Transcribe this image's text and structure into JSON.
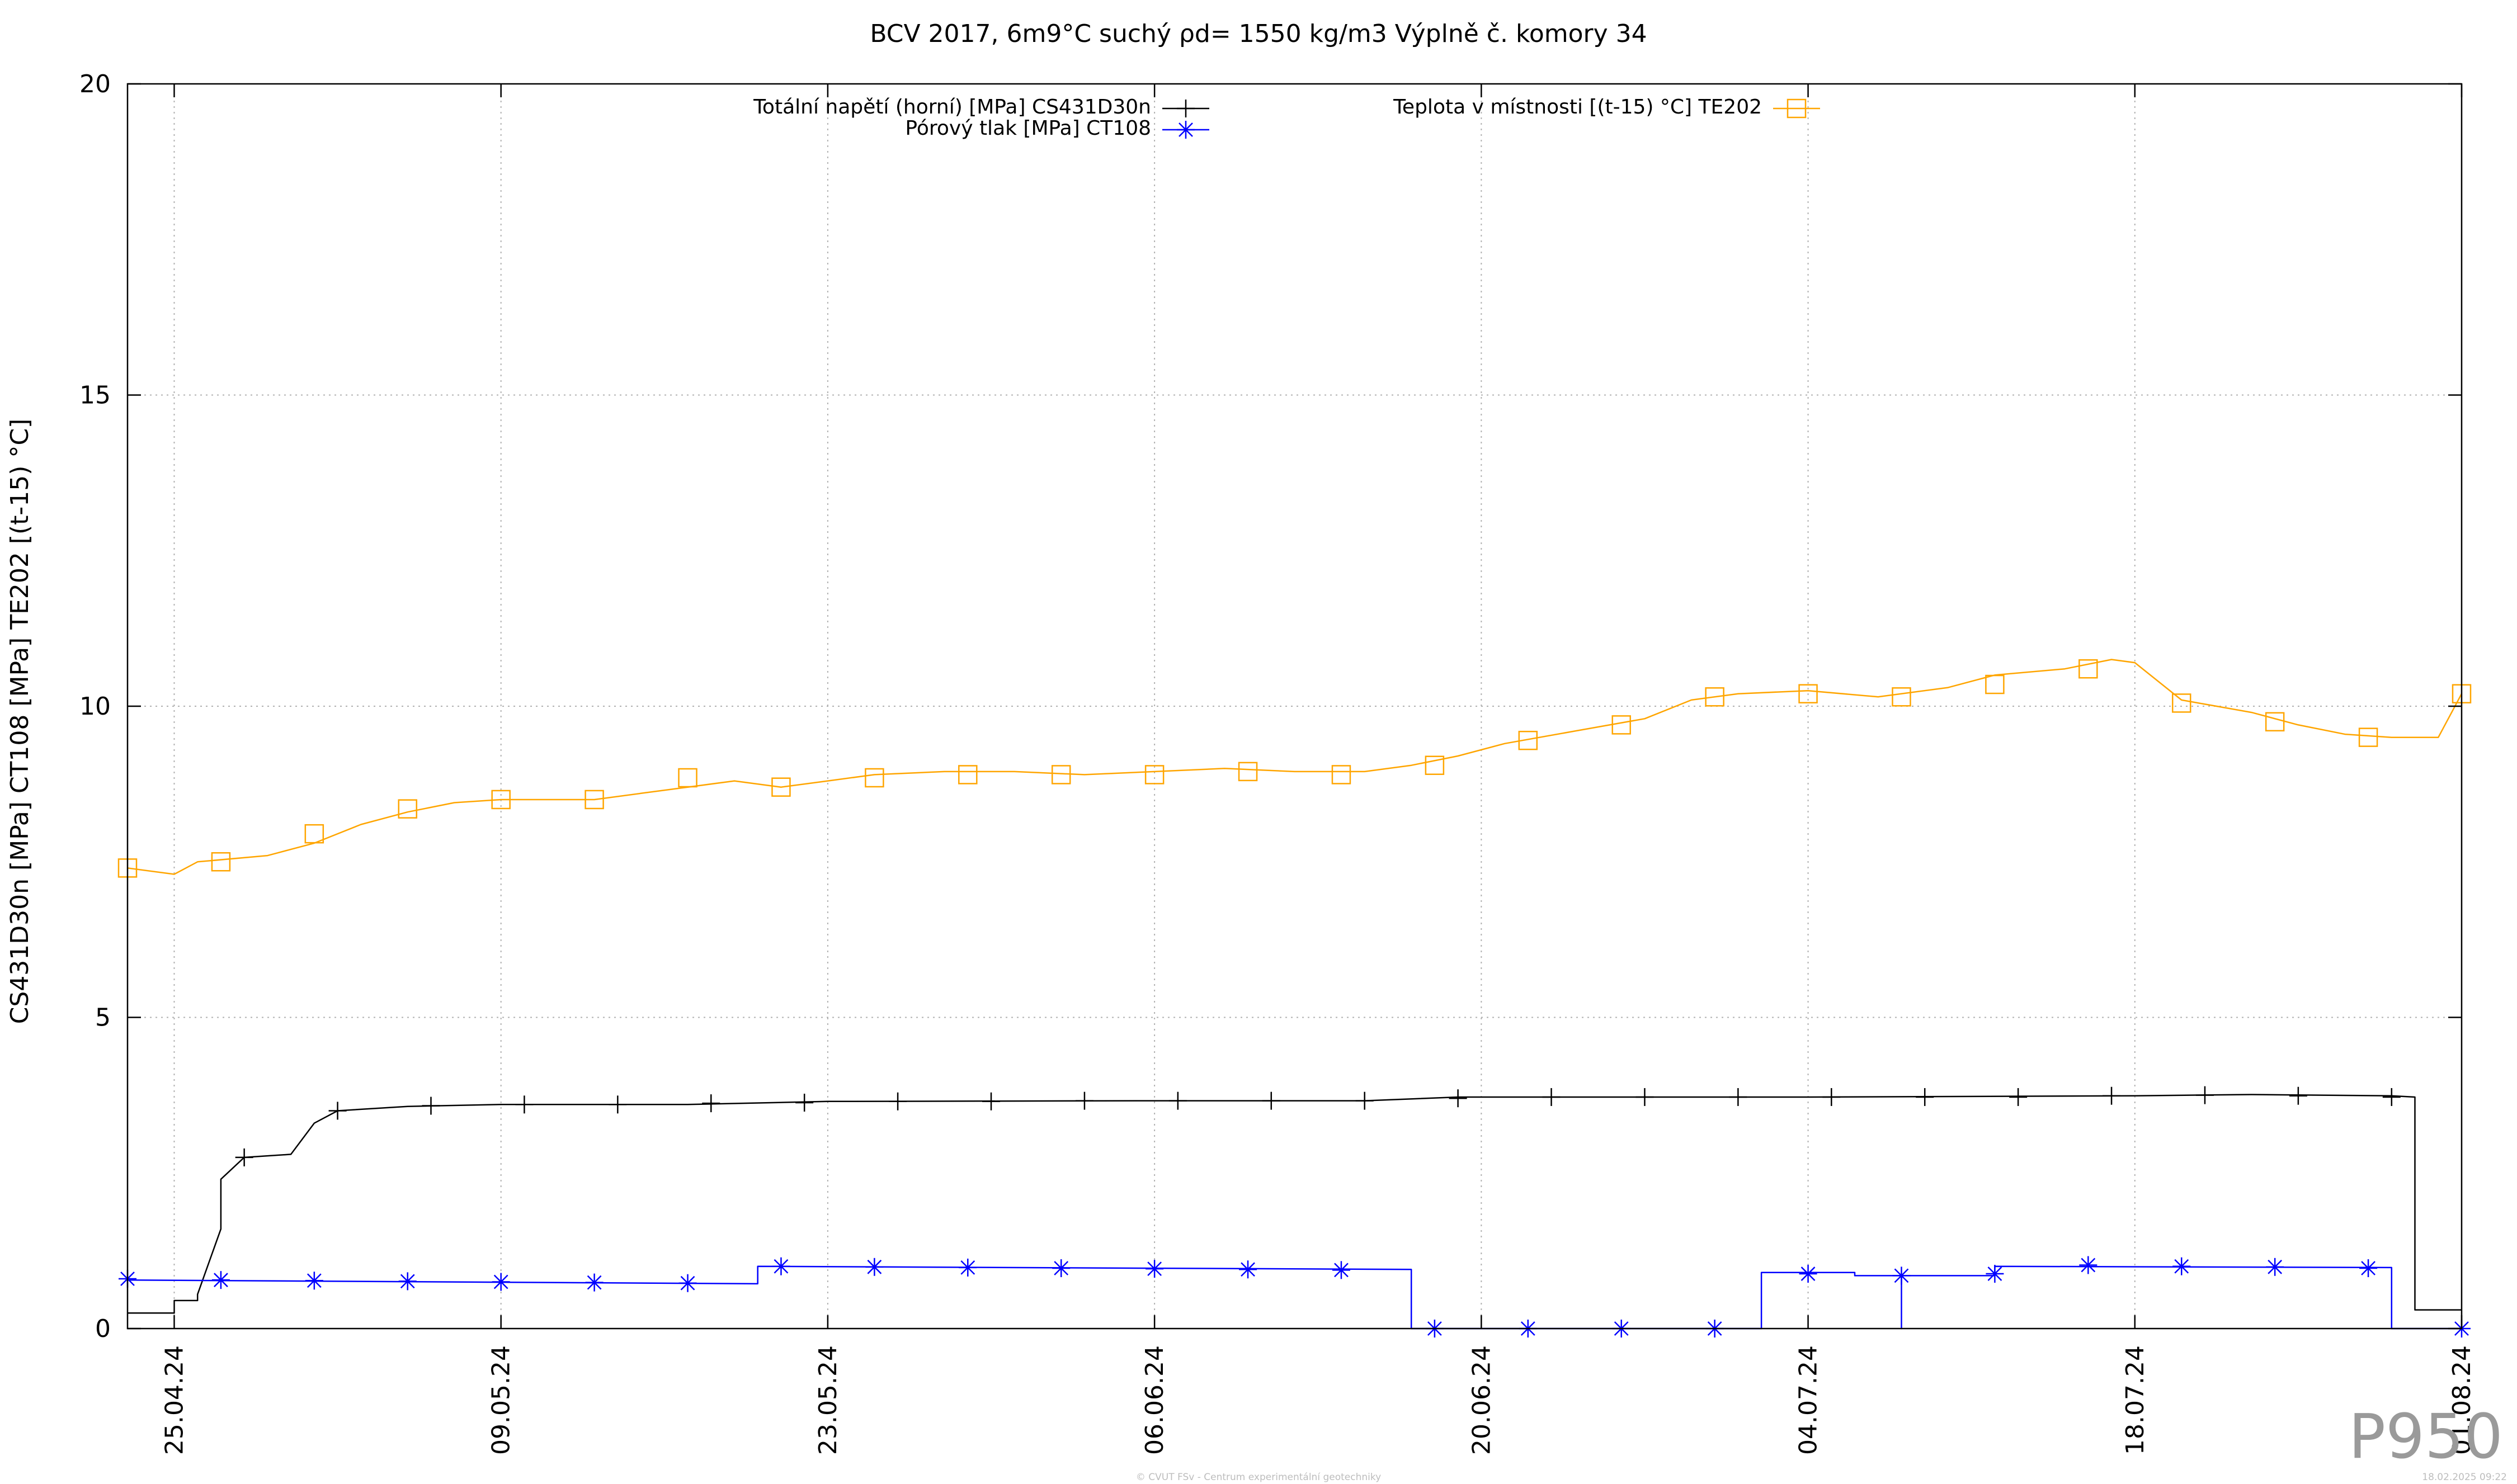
{
  "chart_data": {
    "type": "line",
    "title": "BCV 2017, 6m9°C suchý ρd= 1550 kg/m3 Výplně č. komory 34",
    "xlabel": "",
    "ylabel": "CS431D30n [MPa] CT108 [MPa] TE202 [(t-15) °C]",
    "ylim": [
      0,
      20
    ],
    "y_ticks": [
      0,
      5,
      10,
      15,
      20
    ],
    "x_range": [
      "2024-04-23",
      "2024-08-01"
    ],
    "x_ticks": [
      {
        "date": "2024-04-25",
        "label": "25.04.24"
      },
      {
        "date": "2024-05-09",
        "label": "09.05.24"
      },
      {
        "date": "2024-05-23",
        "label": "23.05.24"
      },
      {
        "date": "2024-06-06",
        "label": "06.06.24"
      },
      {
        "date": "2024-06-20",
        "label": "20.06.24"
      },
      {
        "date": "2024-07-04",
        "label": "04.07.24"
      },
      {
        "date": "2024-07-18",
        "label": "18.07.24"
      },
      {
        "date": "2024-08-01",
        "label": "01.08.24"
      }
    ],
    "grid": true,
    "legend_placement": "top",
    "series": [
      {
        "name": "Totální napětí (horní) [MPa] CS431D30n",
        "color": "#000000",
        "marker": "plus",
        "points": [
          [
            "2024-04-23",
            0.25
          ],
          [
            "2024-04-25",
            0.25
          ],
          [
            "2024-04-25",
            0.45
          ],
          [
            "2024-04-26",
            0.45
          ],
          [
            "2024-04-26",
            0.55
          ],
          [
            "2024-04-27",
            1.6
          ],
          [
            "2024-04-27",
            2.4
          ],
          [
            "2024-04-28",
            2.75
          ],
          [
            "2024-04-30",
            2.8
          ],
          [
            "2024-05-01",
            3.3
          ],
          [
            "2024-05-02",
            3.5
          ],
          [
            "2024-05-05",
            3.57
          ],
          [
            "2024-05-09",
            3.6
          ],
          [
            "2024-05-17",
            3.6
          ],
          [
            "2024-05-23",
            3.65
          ],
          [
            "2024-06-06",
            3.66
          ],
          [
            "2024-06-15",
            3.66
          ],
          [
            "2024-06-19",
            3.72
          ],
          [
            "2024-07-04",
            3.72
          ],
          [
            "2024-07-18",
            3.74
          ],
          [
            "2024-07-23",
            3.76
          ],
          [
            "2024-07-29",
            3.74
          ],
          [
            "2024-07-30",
            3.72
          ],
          [
            "2024-07-30",
            0.3
          ],
          [
            "2024-08-01",
            0.3
          ]
        ],
        "marker_points": [
          [
            "2024-04-28",
            2.75
          ],
          [
            "2024-05-02",
            3.5
          ],
          [
            "2024-05-06",
            3.58
          ],
          [
            "2024-05-10",
            3.6
          ],
          [
            "2024-05-14",
            3.6
          ],
          [
            "2024-05-18",
            3.62
          ],
          [
            "2024-05-22",
            3.63
          ],
          [
            "2024-05-26",
            3.65
          ],
          [
            "2024-05-30",
            3.65
          ],
          [
            "2024-06-03",
            3.66
          ],
          [
            "2024-06-07",
            3.66
          ],
          [
            "2024-06-11",
            3.66
          ],
          [
            "2024-06-15",
            3.66
          ],
          [
            "2024-06-19",
            3.7
          ],
          [
            "2024-06-23",
            3.72
          ],
          [
            "2024-06-27",
            3.72
          ],
          [
            "2024-07-01",
            3.72
          ],
          [
            "2024-07-05",
            3.72
          ],
          [
            "2024-07-09",
            3.72
          ],
          [
            "2024-07-13",
            3.72
          ],
          [
            "2024-07-17",
            3.74
          ],
          [
            "2024-07-21",
            3.75
          ],
          [
            "2024-07-25",
            3.74
          ],
          [
            "2024-07-29",
            3.72
          ]
        ]
      },
      {
        "name": "Pórový tlak [MPa] CT108",
        "color": "#0000ff",
        "marker": "asterisk",
        "points": [
          [
            "2024-04-23",
            0.78
          ],
          [
            "2024-05-20",
            0.72
          ],
          [
            "2024-05-20",
            1.0
          ],
          [
            "2024-06-17",
            0.95
          ],
          [
            "2024-06-17",
            0.0
          ],
          [
            "2024-07-02",
            0.0
          ],
          [
            "2024-07-02",
            0.9
          ],
          [
            "2024-07-06",
            0.9
          ],
          [
            "2024-07-06",
            0.85
          ],
          [
            "2024-07-08",
            0.85
          ],
          [
            "2024-07-08",
            0.0
          ],
          [
            "2024-07-08",
            0.85
          ],
          [
            "2024-07-12",
            0.85
          ],
          [
            "2024-07-12",
            1.0
          ],
          [
            "2024-07-29",
            0.98
          ],
          [
            "2024-07-29",
            0.0
          ],
          [
            "2024-08-01",
            0.0
          ]
        ],
        "marker_points": [
          [
            "2024-04-23",
            0.8
          ],
          [
            "2024-04-27",
            0.78
          ],
          [
            "2024-05-01",
            0.77
          ],
          [
            "2024-05-05",
            0.76
          ],
          [
            "2024-05-09",
            0.75
          ],
          [
            "2024-05-13",
            0.74
          ],
          [
            "2024-05-17",
            0.73
          ],
          [
            "2024-05-21",
            1.0
          ],
          [
            "2024-05-25",
            0.99
          ],
          [
            "2024-05-29",
            0.98
          ],
          [
            "2024-06-02",
            0.97
          ],
          [
            "2024-06-06",
            0.96
          ],
          [
            "2024-06-10",
            0.95
          ],
          [
            "2024-06-14",
            0.94
          ],
          [
            "2024-06-18",
            0.0
          ],
          [
            "2024-06-22",
            0.0
          ],
          [
            "2024-06-26",
            0.0
          ],
          [
            "2024-06-30",
            0.0
          ],
          [
            "2024-07-04",
            0.88
          ],
          [
            "2024-07-08",
            0.85
          ],
          [
            "2024-07-12",
            0.88
          ],
          [
            "2024-07-16",
            1.02
          ],
          [
            "2024-07-20",
            1.0
          ],
          [
            "2024-07-24",
            0.99
          ],
          [
            "2024-07-28",
            0.97
          ],
          [
            "2024-08-01",
            0.0
          ]
        ]
      },
      {
        "name": "Teplota v místnosti [(t-15) °C] TE202",
        "color": "#ffa500",
        "marker": "square",
        "points": [
          [
            "2024-04-23",
            7.4
          ],
          [
            "2024-04-25",
            7.3
          ],
          [
            "2024-04-26",
            7.5
          ],
          [
            "2024-04-29",
            7.6
          ],
          [
            "2024-05-01",
            7.8
          ],
          [
            "2024-05-03",
            8.1
          ],
          [
            "2024-05-05",
            8.3
          ],
          [
            "2024-05-07",
            8.45
          ],
          [
            "2024-05-09",
            8.5
          ],
          [
            "2024-05-11",
            8.5
          ],
          [
            "2024-05-13",
            8.5
          ],
          [
            "2024-05-15",
            8.6
          ],
          [
            "2024-05-17",
            8.7
          ],
          [
            "2024-05-19",
            8.8
          ],
          [
            "2024-05-21",
            8.7
          ],
          [
            "2024-05-23",
            8.8
          ],
          [
            "2024-05-25",
            8.9
          ],
          [
            "2024-05-28",
            8.95
          ],
          [
            "2024-05-31",
            8.95
          ],
          [
            "2024-06-03",
            8.9
          ],
          [
            "2024-06-06",
            8.95
          ],
          [
            "2024-06-09",
            9.0
          ],
          [
            "2024-06-12",
            8.95
          ],
          [
            "2024-06-15",
            8.95
          ],
          [
            "2024-06-17",
            9.05
          ],
          [
            "2024-06-19",
            9.2
          ],
          [
            "2024-06-21",
            9.4
          ],
          [
            "2024-06-24",
            9.6
          ],
          [
            "2024-06-27",
            9.8
          ],
          [
            "2024-06-29",
            10.1
          ],
          [
            "2024-07-01",
            10.2
          ],
          [
            "2024-07-04",
            10.25
          ],
          [
            "2024-07-07",
            10.15
          ],
          [
            "2024-07-10",
            10.3
          ],
          [
            "2024-07-12",
            10.5
          ],
          [
            "2024-07-15",
            10.6
          ],
          [
            "2024-07-17",
            10.75
          ],
          [
            "2024-07-18",
            10.7
          ],
          [
            "2024-07-20",
            10.1
          ],
          [
            "2024-07-23",
            9.9
          ],
          [
            "2024-07-25",
            9.7
          ],
          [
            "2024-07-27",
            9.55
          ],
          [
            "2024-07-29",
            9.5
          ],
          [
            "2024-07-31",
            9.5
          ],
          [
            "2024-08-01",
            10.2
          ]
        ],
        "marker_points": [
          [
            "2024-04-23",
            7.4
          ],
          [
            "2024-04-27",
            7.5
          ],
          [
            "2024-05-01",
            7.95
          ],
          [
            "2024-05-05",
            8.35
          ],
          [
            "2024-05-09",
            8.5
          ],
          [
            "2024-05-13",
            8.5
          ],
          [
            "2024-05-17",
            8.85
          ],
          [
            "2024-05-21",
            8.7
          ],
          [
            "2024-05-25",
            8.85
          ],
          [
            "2024-05-29",
            8.9
          ],
          [
            "2024-06-02",
            8.9
          ],
          [
            "2024-06-06",
            8.9
          ],
          [
            "2024-06-10",
            8.95
          ],
          [
            "2024-06-14",
            8.9
          ],
          [
            "2024-06-18",
            9.05
          ],
          [
            "2024-06-22",
            9.45
          ],
          [
            "2024-06-26",
            9.7
          ],
          [
            "2024-06-30",
            10.15
          ],
          [
            "2024-07-04",
            10.2
          ],
          [
            "2024-07-08",
            10.15
          ],
          [
            "2024-07-12",
            10.35
          ],
          [
            "2024-07-16",
            10.6
          ],
          [
            "2024-07-20",
            10.05
          ],
          [
            "2024-07-24",
            9.75
          ],
          [
            "2024-07-28",
            9.5
          ],
          [
            "2024-08-01",
            10.2
          ]
        ]
      }
    ]
  },
  "footer": {
    "watermark": "P950",
    "credit": "© CVUT FSv - Centrum experimentální geotechniky",
    "timestamp": "18.02.2025 09:22"
  }
}
